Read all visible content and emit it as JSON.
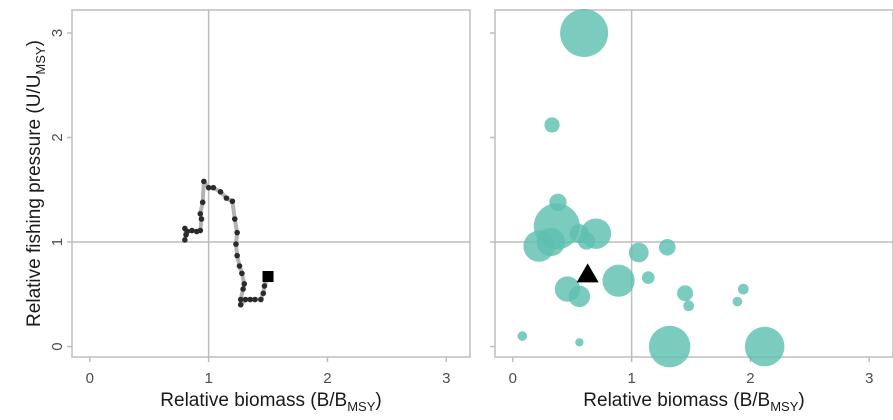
{
  "chart_data": [
    {
      "type": "line",
      "panel": "left",
      "xlabel": "Relative biomass (B/B",
      "xlabel_sub": "MSY",
      "xlabel_end": ")",
      "ylabel": "Relative fishing pressure (U/U",
      "ylabel_sub": "MSY",
      "ylabel_end": ")",
      "xlim": [
        -0.15,
        3.2
      ],
      "ylim": [
        -0.1,
        3.22
      ],
      "xticks": [
        "0",
        "1",
        "2",
        "3"
      ],
      "yticks": [
        "0",
        "1",
        "2",
        "3"
      ],
      "reference_lines": {
        "x": 1,
        "y": 1
      },
      "grid": false,
      "series": [
        {
          "x": [
            0.8,
            0.81,
            0.8,
            0.82,
            0.86,
            0.9,
            0.93,
            0.94,
            0.93,
            0.95,
            0.96,
            1.0,
            1.04,
            1.1,
            1.15,
            1.2,
            1.22,
            1.24,
            1.23,
            1.24,
            1.26,
            1.28,
            1.3,
            1.29,
            1.27,
            1.27,
            1.31,
            1.35,
            1.39,
            1.44,
            1.46,
            1.47,
            1.5
          ],
          "y": [
            1.02,
            1.07,
            1.13,
            1.1,
            1.11,
            1.1,
            1.11,
            1.22,
            1.27,
            1.38,
            1.58,
            1.52,
            1.52,
            1.48,
            1.42,
            1.39,
            1.22,
            1.09,
            0.98,
            0.87,
            0.77,
            0.7,
            0.6,
            0.55,
            0.45,
            0.4,
            0.45,
            0.45,
            0.45,
            0.45,
            0.51,
            0.58,
            0.67
          ]
        }
      ],
      "end_marker": {
        "shape": "square",
        "x": 1.5,
        "y": 0.67
      }
    },
    {
      "type": "scatter",
      "panel": "right",
      "xlabel": "Relative biomass (B/B",
      "xlabel_sub": "MSY",
      "xlabel_end": ")",
      "xlim": [
        -0.15,
        3.2
      ],
      "ylim": [
        -0.1,
        3.22
      ],
      "xticks": [
        "0",
        "1",
        "2",
        "3"
      ],
      "reference_lines": {
        "x": 1,
        "y": 1
      },
      "grid": false,
      "bubble_color": "#5ebfb1",
      "bubbles": [
        {
          "x": 0.6,
          "y": 3.0,
          "size": 1.0
        },
        {
          "x": 0.37,
          "y": 1.15,
          "size": 0.92
        },
        {
          "x": 0.22,
          "y": 0.96,
          "size": 0.42
        },
        {
          "x": 0.32,
          "y": 1.0,
          "size": 0.35
        },
        {
          "x": 0.7,
          "y": 1.08,
          "size": 0.4
        },
        {
          "x": 1.32,
          "y": 0.0,
          "size": 0.75
        },
        {
          "x": 2.12,
          "y": 0.0,
          "size": 0.68
        },
        {
          "x": 0.89,
          "y": 0.63,
          "size": 0.45
        },
        {
          "x": 0.46,
          "y": 0.55,
          "size": 0.28
        },
        {
          "x": 0.56,
          "y": 0.48,
          "size": 0.2
        },
        {
          "x": 1.06,
          "y": 0.9,
          "size": 0.17
        },
        {
          "x": 1.3,
          "y": 0.95,
          "size": 0.12
        },
        {
          "x": 0.56,
          "y": 1.08,
          "size": 0.16
        },
        {
          "x": 0.62,
          "y": 1.01,
          "size": 0.13
        },
        {
          "x": 0.38,
          "y": 1.38,
          "size": 0.13
        },
        {
          "x": 0.33,
          "y": 2.12,
          "size": 0.1
        },
        {
          "x": 1.45,
          "y": 0.51,
          "size": 0.11
        },
        {
          "x": 1.14,
          "y": 0.66,
          "size": 0.07
        },
        {
          "x": 1.48,
          "y": 0.39,
          "size": 0.05
        },
        {
          "x": 1.94,
          "y": 0.55,
          "size": 0.05
        },
        {
          "x": 1.89,
          "y": 0.43,
          "size": 0.04
        },
        {
          "x": 0.08,
          "y": 0.1,
          "size": 0.04
        },
        {
          "x": 0.56,
          "y": 0.04,
          "size": 0.03
        }
      ],
      "marker": {
        "shape": "triangle",
        "x": 0.63,
        "y": 0.7
      }
    }
  ]
}
